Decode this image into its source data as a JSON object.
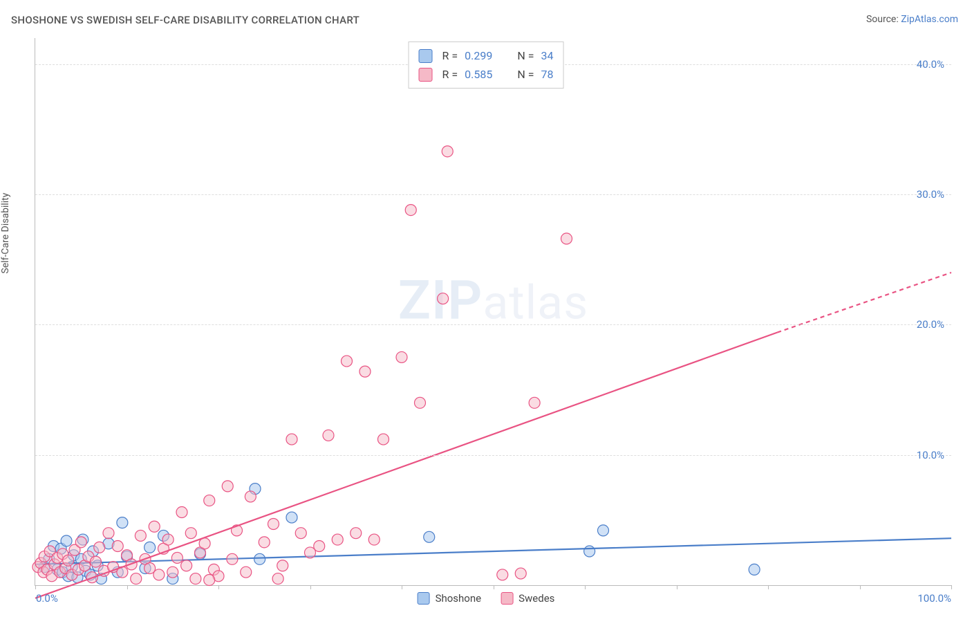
{
  "title": "SHOSHONE VS SWEDISH SELF-CARE DISABILITY CORRELATION CHART",
  "source_label": "Source: ",
  "source_value": "ZipAtlas.com",
  "y_axis_label": "Self-Care Disability",
  "watermark_zip": "ZIP",
  "watermark_atlas": "atlas",
  "chart": {
    "type": "scatter",
    "plot_bg": "#ffffff",
    "grid_color": "#dddddd",
    "axis_color": "#bbbbbb",
    "xlim": [
      0,
      100
    ],
    "ylim": [
      0,
      42
    ],
    "x_ticks": [
      0,
      10,
      20,
      30,
      40,
      50,
      60,
      70,
      80,
      90,
      100
    ],
    "y_ticks": [
      10,
      20,
      30,
      40
    ],
    "y_tick_labels": [
      "10.0%",
      "20.0%",
      "30.0%",
      "40.0%"
    ],
    "x_left_label": "0.0%",
    "x_right_label": "100.0%",
    "marker_radius": 8,
    "marker_stroke_width": 1.2,
    "trend_line_width": 2.2,
    "series": [
      {
        "id": "shoshone",
        "label": "Shoshone",
        "fill": "#a9c9ee",
        "stroke": "#4a7ec9",
        "fill_opacity": 0.55,
        "R": "0.299",
        "N": "34",
        "trend": {
          "x1": 0,
          "y1": 1.6,
          "x2": 100,
          "y2": 3.6,
          "dash": false
        },
        "points": [
          [
            1.0,
            1.4
          ],
          [
            1.5,
            2.0
          ],
          [
            2.0,
            3.0
          ],
          [
            2.4,
            1.2
          ],
          [
            2.8,
            2.8
          ],
          [
            3.0,
            1.0
          ],
          [
            3.4,
            3.4
          ],
          [
            3.6,
            0.7
          ],
          [
            4.0,
            1.4
          ],
          [
            4.2,
            2.3
          ],
          [
            4.6,
            0.6
          ],
          [
            5.0,
            2.0
          ],
          [
            5.2,
            3.5
          ],
          [
            5.5,
            1.1
          ],
          [
            6.0,
            0.8
          ],
          [
            6.3,
            2.6
          ],
          [
            6.8,
            1.5
          ],
          [
            7.2,
            0.5
          ],
          [
            8.0,
            3.2
          ],
          [
            9.0,
            1.0
          ],
          [
            9.5,
            4.8
          ],
          [
            10.0,
            2.2
          ],
          [
            12.0,
            1.3
          ],
          [
            12.5,
            2.9
          ],
          [
            14.0,
            3.8
          ],
          [
            15.0,
            0.5
          ],
          [
            18.0,
            2.4
          ],
          [
            24.0,
            7.4
          ],
          [
            28.0,
            5.2
          ],
          [
            43.0,
            3.7
          ],
          [
            60.5,
            2.6
          ],
          [
            62.0,
            4.2
          ],
          [
            78.5,
            1.2
          ],
          [
            24.5,
            2.0
          ]
        ]
      },
      {
        "id": "swedes",
        "label": "Swedes",
        "fill": "#f5b9c7",
        "stroke": "#e95383",
        "fill_opacity": 0.5,
        "R": "0.585",
        "N": "78",
        "trend": {
          "x1": 0,
          "y1": -1.0,
          "x2": 81,
          "y2": 19.4,
          "dash": false
        },
        "trend_ext": {
          "x1": 81,
          "y1": 19.4,
          "x2": 100,
          "y2": 24.0,
          "dash": true
        },
        "points": [
          [
            0.3,
            1.4
          ],
          [
            0.6,
            1.7
          ],
          [
            0.9,
            1.0
          ],
          [
            1.0,
            2.2
          ],
          [
            1.3,
            1.2
          ],
          [
            1.6,
            2.6
          ],
          [
            1.8,
            0.7
          ],
          [
            2.1,
            1.6
          ],
          [
            2.4,
            2.1
          ],
          [
            2.7,
            1.0
          ],
          [
            3.0,
            2.4
          ],
          [
            3.3,
            1.3
          ],
          [
            3.6,
            1.9
          ],
          [
            4.0,
            0.8
          ],
          [
            4.3,
            2.7
          ],
          [
            4.7,
            1.2
          ],
          [
            5.0,
            3.3
          ],
          [
            5.4,
            1.5
          ],
          [
            5.8,
            2.2
          ],
          [
            6.2,
            0.6
          ],
          [
            6.6,
            1.8
          ],
          [
            7.0,
            2.9
          ],
          [
            7.5,
            1.1
          ],
          [
            8.0,
            4.0
          ],
          [
            8.5,
            1.4
          ],
          [
            9.0,
            3.0
          ],
          [
            9.5,
            1.0
          ],
          [
            10.0,
            2.3
          ],
          [
            10.5,
            1.6
          ],
          [
            11.0,
            0.5
          ],
          [
            11.5,
            3.8
          ],
          [
            12.0,
            2.0
          ],
          [
            12.5,
            1.3
          ],
          [
            13.0,
            4.5
          ],
          [
            13.5,
            0.8
          ],
          [
            14.0,
            2.8
          ],
          [
            14.5,
            3.5
          ],
          [
            15.0,
            1.0
          ],
          [
            15.5,
            2.1
          ],
          [
            16.0,
            5.6
          ],
          [
            16.5,
            1.5
          ],
          [
            17.0,
            4.0
          ],
          [
            17.5,
            0.5
          ],
          [
            18.0,
            2.5
          ],
          [
            18.5,
            3.2
          ],
          [
            19.0,
            6.5
          ],
          [
            19.5,
            1.2
          ],
          [
            20.0,
            0.7
          ],
          [
            21.0,
            7.6
          ],
          [
            21.5,
            2.0
          ],
          [
            22.0,
            4.2
          ],
          [
            23.0,
            1.0
          ],
          [
            23.5,
            6.8
          ],
          [
            25.0,
            3.3
          ],
          [
            26.0,
            4.7
          ],
          [
            27.0,
            1.5
          ],
          [
            28.0,
            11.2
          ],
          [
            29.0,
            4.0
          ],
          [
            30.0,
            2.5
          ],
          [
            31.0,
            3.0
          ],
          [
            32.0,
            11.5
          ],
          [
            33.0,
            3.5
          ],
          [
            34.0,
            17.2
          ],
          [
            35.0,
            4.0
          ],
          [
            36.0,
            16.4
          ],
          [
            37.0,
            3.5
          ],
          [
            38.0,
            11.2
          ],
          [
            40.0,
            17.5
          ],
          [
            41.0,
            28.8
          ],
          [
            42.0,
            14.0
          ],
          [
            44.5,
            22.0
          ],
          [
            45.0,
            33.3
          ],
          [
            51.0,
            0.8
          ],
          [
            53.0,
            0.9
          ],
          [
            54.5,
            14.0
          ],
          [
            58.0,
            26.6
          ],
          [
            19.0,
            0.4
          ],
          [
            26.5,
            0.5
          ]
        ]
      }
    ]
  },
  "stats_labels": {
    "R": "R =",
    "N": "N ="
  },
  "bottom_legend": [
    {
      "label": "Shoshone",
      "fill": "#a9c9ee",
      "stroke": "#4a7ec9"
    },
    {
      "label": "Swedes",
      "fill": "#f5b9c7",
      "stroke": "#e95383"
    }
  ]
}
